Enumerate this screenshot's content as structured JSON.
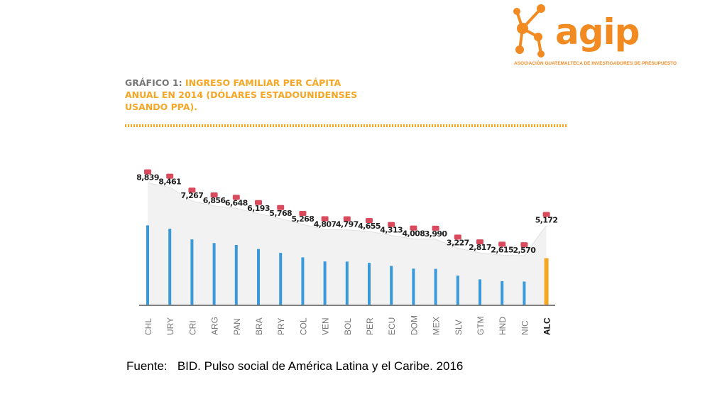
{
  "logo": {
    "name": "agip",
    "subtitle": "ASOCIACIÓN GUATEMALTECA DE INVESTIGADORES DE PRESUPUESTO",
    "color": "#f28a22"
  },
  "chart_data": {
    "type": "bar",
    "title_prefix": "GRÁFICO 1:",
    "title": "INGRESO FAMILIAR PER CÁPITA ANUAL EN 2014 (DÓLARES ESTADOUNIDENSES USANDO PPA).",
    "categories": [
      "CHL",
      "URY",
      "CRI",
      "ARG",
      "PAN",
      "BRA",
      "PRY",
      "COL",
      "VEN",
      "BOL",
      "PER",
      "ECU",
      "DOM",
      "MEX",
      "SLV",
      "GTM",
      "HND",
      "NIC",
      "ALC"
    ],
    "values": [
      8839,
      8461,
      7267,
      6856,
      6648,
      6193,
      5768,
      5268,
      4807,
      4797,
      4655,
      4313,
      4008,
      3990,
      3227,
      2817,
      2615,
      2570,
      5172
    ],
    "value_labels": [
      "8,839",
      "8,461",
      "7,267",
      "6,856",
      "6,648",
      "6,193",
      "5,768",
      "5,268",
      "4,807",
      "4,797",
      "4,655",
      "4,313",
      "4,008",
      "3,990",
      "3,227",
      "2,817",
      "2,615",
      "2,570",
      "5,172"
    ],
    "highlight": "ALC",
    "colors": {
      "bar": "#3a9ad9",
      "highlight": "#f5a623",
      "marker": "#d94a5c",
      "area": "#f2f2f2"
    },
    "xlabel": "",
    "ylabel": "",
    "grid": false
  },
  "source": {
    "label": "Fuente:",
    "text": "BID. Pulso social de América Latina y el Caribe. 2016"
  }
}
